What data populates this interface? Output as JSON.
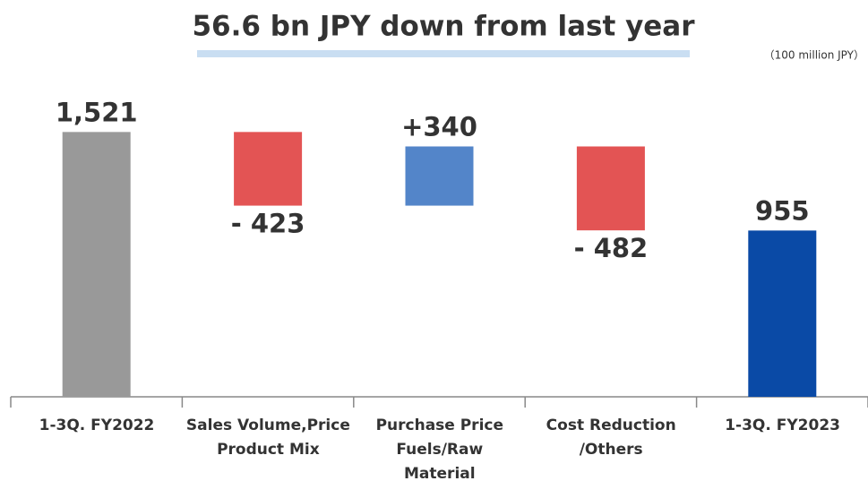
{
  "chart_data": {
    "type": "waterfall",
    "title": "56.6 bn JPY down from last year",
    "unit": "（100 million JPY）",
    "categories": [
      "1-3Q. FY2022",
      "Sales Volume,Price\nProduct Mix",
      "Purchase Price\nFuels/Raw\nMaterial",
      "Cost Reduction\n/Others",
      "1-3Q. FY2023"
    ],
    "values": [
      1521,
      -423,
      340,
      -482,
      955
    ],
    "value_labels": [
      "1,521",
      "- 423",
      "+340",
      "- 482",
      "955"
    ],
    "colors": [
      "#999999",
      "#e35454",
      "#5385c9",
      "#e35454",
      "#0a4aa6"
    ],
    "ylim": [
      0,
      1600
    ]
  }
}
